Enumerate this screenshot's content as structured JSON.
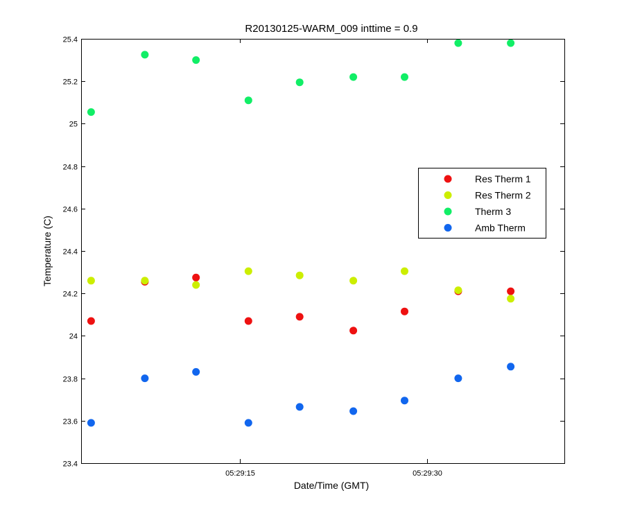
{
  "chart_data": {
    "type": "scatter",
    "title": "R20130125-WARM_009 inttime = 0.9",
    "xlabel": "Date/Time (GMT)",
    "ylabel": "Temperature (C)",
    "x_axis": {
      "unit": "time of day (GMT)",
      "range": [
        "05:29:02.3",
        "05:29:41.0"
      ],
      "ticks": [
        {
          "t": "05:29:15",
          "label": "05:29:15"
        },
        {
          "t": "05:29:30",
          "label": "05:29:30"
        }
      ]
    },
    "y_axis": {
      "range": [
        23.4,
        25.4
      ],
      "ticks": [
        {
          "v": 23.4,
          "label": "23.4"
        },
        {
          "v": 23.6,
          "label": "23.6"
        },
        {
          "v": 23.8,
          "label": "23.8"
        },
        {
          "v": 24.0,
          "label": "24"
        },
        {
          "v": 24.2,
          "label": "24.2"
        },
        {
          "v": 24.4,
          "label": "24.4"
        },
        {
          "v": 24.6,
          "label": "24.6"
        },
        {
          "v": 24.8,
          "label": "24.8"
        },
        {
          "v": 25.0,
          "label": "25"
        },
        {
          "v": 25.2,
          "label": "25.2"
        },
        {
          "v": 25.4,
          "label": "25.4"
        }
      ]
    },
    "x": [
      "05:29:03.1",
      "05:29:07.4",
      "05:29:11.5",
      "05:29:15.7",
      "05:29:19.8",
      "05:29:24.1",
      "05:29:28.2",
      "05:29:32.5",
      "05:29:36.7"
    ],
    "series": [
      {
        "name": "Res Therm 1",
        "color": "#ee1111",
        "values": [
          24.07,
          24.255,
          24.275,
          24.07,
          24.09,
          24.025,
          24.115,
          24.21,
          24.21
        ]
      },
      {
        "name": "Res Therm 2",
        "color": "#ccee00",
        "values": [
          24.26,
          24.26,
          24.24,
          24.305,
          24.285,
          24.26,
          24.305,
          24.215,
          24.175
        ]
      },
      {
        "name": "Therm 3",
        "color": "#11ee66",
        "values": [
          25.055,
          25.325,
          25.3,
          25.11,
          25.195,
          25.22,
          25.22,
          25.38,
          25.38
        ]
      },
      {
        "name": "Amb Therm",
        "color": "#1166ee",
        "values": [
          23.59,
          23.8,
          23.83,
          23.59,
          23.665,
          23.645,
          23.695,
          23.8,
          23.855
        ]
      }
    ],
    "legend_position": "right",
    "grid": false
  }
}
